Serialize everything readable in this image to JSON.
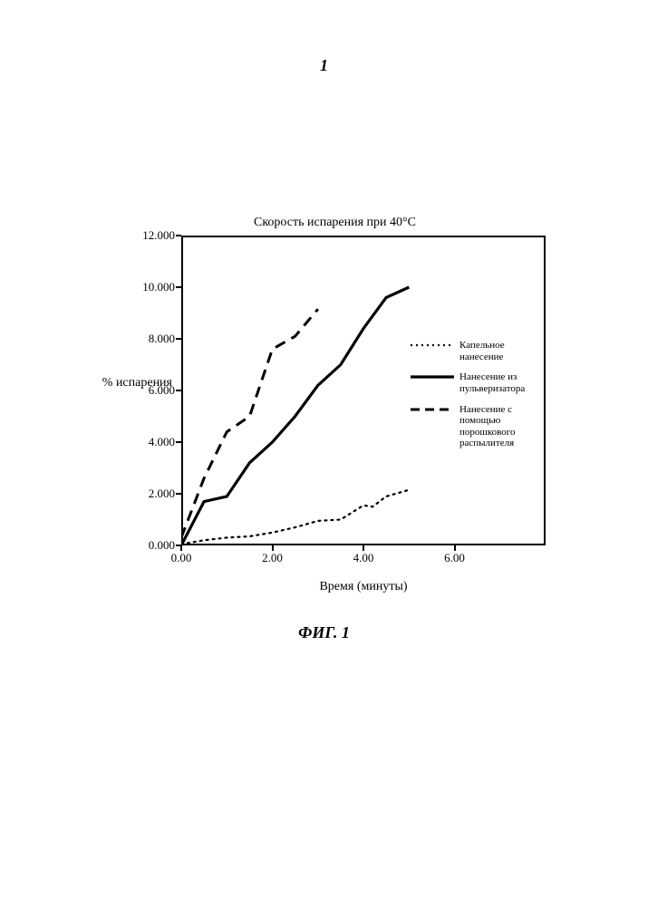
{
  "page_number": "1",
  "chart": {
    "type": "line",
    "title": "Скорость испарения при 40°C",
    "ylabel": "% испарения",
    "xlabel": "Время (минуты)",
    "xlim": [
      0,
      8
    ],
    "ylim": [
      0,
      12
    ],
    "xticks": [
      0.0,
      2.0,
      4.0,
      6.0
    ],
    "yticks": [
      0.0,
      2.0,
      4.0,
      6.0,
      8.0,
      10.0,
      12.0
    ],
    "xtick_labels": [
      "0.00",
      "2.00",
      "4.00",
      "6.00"
    ],
    "ytick_labels": [
      "0.000",
      "2.000",
      "4.000",
      "6.000",
      "8.000",
      "10.000",
      "12.000"
    ],
    "background_color": "#ffffff",
    "border_color": "#000000",
    "series": [
      {
        "name": "Капельное нанесение",
        "style": "dotted",
        "color": "#000000",
        "line_width": 2.2,
        "x": [
          0.0,
          0.5,
          1.0,
          1.5,
          2.0,
          2.5,
          3.0,
          3.5,
          4.0,
          4.2,
          4.5,
          5.0
        ],
        "y": [
          0.05,
          0.2,
          0.3,
          0.35,
          0.5,
          0.7,
          0.95,
          1.0,
          1.55,
          1.5,
          1.9,
          2.15
        ]
      },
      {
        "name": "Нанесение из пульверизатора",
        "style": "solid",
        "color": "#000000",
        "line_width": 3.2,
        "x": [
          0.0,
          0.5,
          1.0,
          1.5,
          2.0,
          2.5,
          3.0,
          3.5,
          4.0,
          4.5,
          5.0
        ],
        "y": [
          0.0,
          1.7,
          1.9,
          3.2,
          4.0,
          5.0,
          6.2,
          7.0,
          8.4,
          9.6,
          10.0
        ]
      },
      {
        "name": "Нанесение с помощью порошкового распылителя",
        "style": "dashed",
        "color": "#000000",
        "line_width": 3.0,
        "x": [
          0.0,
          0.5,
          1.0,
          1.5,
          2.0,
          2.5,
          3.0
        ],
        "y": [
          0.3,
          2.6,
          4.4,
          5.0,
          7.6,
          8.1,
          9.15
        ]
      }
    ],
    "legend": [
      "Капельное нанесение",
      "Нанесение из пульверизатора",
      "Нанесение с помощью порошкового распылителя"
    ]
  },
  "figure_caption": "ФИГ. 1"
}
